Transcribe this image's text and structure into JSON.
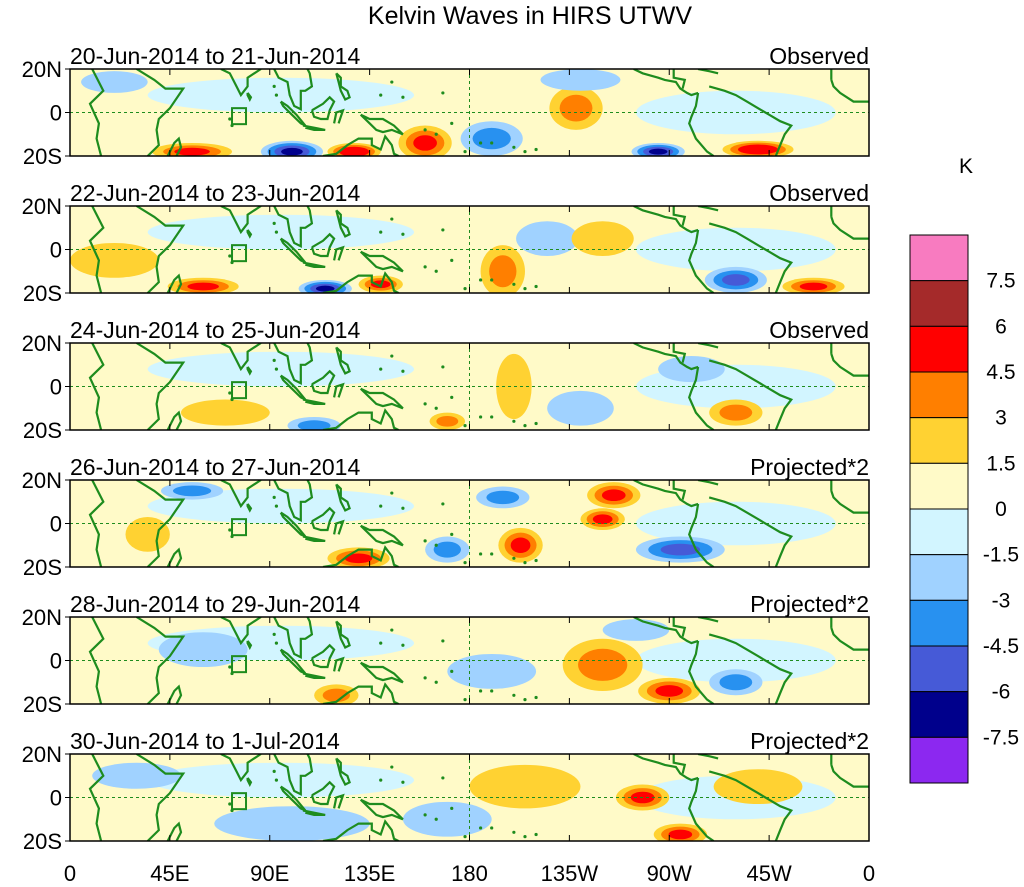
{
  "chart_data": {
    "type": "heatmap",
    "title": "Kelvin Waves in HIRS UTWV",
    "unit_label": "K",
    "x_ticks": [
      "0",
      "45E",
      "90E",
      "135E",
      "180",
      "135W",
      "90W",
      "45W",
      "0"
    ],
    "y_ticks": [
      "20N",
      "0",
      "20S"
    ],
    "x_range_deg_east": [
      0,
      360
    ],
    "y_range_deg": [
      -20,
      20
    ],
    "colorbar": {
      "tick_labels": [
        "7.5",
        "6",
        "4.5",
        "3",
        "1.5",
        "0",
        "-1.5",
        "-3",
        "-4.5",
        "-6",
        "-7.5"
      ],
      "colors": [
        "#f87bc0",
        "#a52a2a",
        "#ff0000",
        "#ff7f00",
        "#ffd232",
        "#fffac8",
        "#d2f5ff",
        "#a0d2ff",
        "#2891f0",
        "#465ad7",
        "#00008c",
        "#8c28f0"
      ]
    },
    "panels": [
      {
        "date_range": "20-Jun-2014 to 21-Jun-2014",
        "label": "Observed",
        "blobs": [
          {
            "lon": 20,
            "lat": 14,
            "value": -1.5,
            "rlon": 15,
            "rlat": 5
          },
          {
            "lon": 55,
            "lat": -18,
            "value": 4.5,
            "rlon": 18,
            "rlat": 4
          },
          {
            "lon": 100,
            "lat": -18,
            "value": -6,
            "rlon": 14,
            "rlat": 5
          },
          {
            "lon": 128,
            "lat": -18,
            "value": 6,
            "rlon": 12,
            "rlat": 4
          },
          {
            "lon": 160,
            "lat": -14,
            "value": 4.5,
            "rlon": 12,
            "rlat": 8
          },
          {
            "lon": 190,
            "lat": -12,
            "value": -3,
            "rlon": 14,
            "rlat": 8
          },
          {
            "lon": 228,
            "lat": 2,
            "value": 3,
            "rlon": 12,
            "rlat": 10
          },
          {
            "lon": 265,
            "lat": -18,
            "value": -6,
            "rlon": 12,
            "rlat": 4
          },
          {
            "lon": 310,
            "lat": -17,
            "value": 6,
            "rlon": 16,
            "rlat": 4
          },
          {
            "lon": 230,
            "lat": 15,
            "value": -1.5,
            "rlon": 18,
            "rlat": 5
          }
        ]
      },
      {
        "date_range": "22-Jun-2014 to 23-Jun-2014",
        "label": "Observed",
        "blobs": [
          {
            "lon": 60,
            "lat": -17,
            "value": 4.5,
            "rlon": 16,
            "rlat": 4
          },
          {
            "lon": 115,
            "lat": -18,
            "value": -6,
            "rlon": 12,
            "rlat": 4
          },
          {
            "lon": 140,
            "lat": -16,
            "value": 4.5,
            "rlon": 10,
            "rlat": 4
          },
          {
            "lon": 195,
            "lat": -10,
            "value": 3,
            "rlon": 10,
            "rlat": 12
          },
          {
            "lon": 215,
            "lat": 5,
            "value": -1.5,
            "rlon": 14,
            "rlat": 8
          },
          {
            "lon": 240,
            "lat": 5,
            "value": 1.5,
            "rlon": 14,
            "rlat": 8
          },
          {
            "lon": 300,
            "lat": -14,
            "value": -4.5,
            "rlon": 14,
            "rlat": 6
          },
          {
            "lon": 335,
            "lat": -17,
            "value": 4.5,
            "rlon": 14,
            "rlat": 4
          },
          {
            "lon": 20,
            "lat": -5,
            "value": 1.5,
            "rlon": 20,
            "rlat": 8
          }
        ]
      },
      {
        "date_range": "24-Jun-2014 to 25-Jun-2014",
        "label": "Observed",
        "blobs": [
          {
            "lon": 70,
            "lat": -12,
            "value": 1.5,
            "rlon": 20,
            "rlat": 6
          },
          {
            "lon": 110,
            "lat": -18,
            "value": -3,
            "rlon": 12,
            "rlat": 4
          },
          {
            "lon": 200,
            "lat": 0,
            "value": 1.5,
            "rlon": 8,
            "rlat": 15
          },
          {
            "lon": 230,
            "lat": -10,
            "value": -1.5,
            "rlon": 15,
            "rlat": 8
          },
          {
            "lon": 300,
            "lat": -12,
            "value": 3,
            "rlon": 12,
            "rlat": 6
          },
          {
            "lon": 280,
            "lat": 8,
            "value": -1.5,
            "rlon": 15,
            "rlat": 6
          },
          {
            "lon": 170,
            "lat": -16,
            "value": 3,
            "rlon": 8,
            "rlat": 4
          }
        ]
      },
      {
        "date_range": "26-Jun-2014 to 27-Jun-2014",
        "label": "Projected*2",
        "blobs": [
          {
            "lon": 55,
            "lat": 15,
            "value": -3,
            "rlon": 14,
            "rlat": 4
          },
          {
            "lon": 130,
            "lat": -16,
            "value": 4.5,
            "rlon": 14,
            "rlat": 5
          },
          {
            "lon": 170,
            "lat": -12,
            "value": -3,
            "rlon": 10,
            "rlat": 6
          },
          {
            "lon": 203,
            "lat": -10,
            "value": 4.5,
            "rlon": 10,
            "rlat": 8
          },
          {
            "lon": 245,
            "lat": 13,
            "value": 4.5,
            "rlon": 12,
            "rlat": 6
          },
          {
            "lon": 240,
            "lat": 2,
            "value": 4.5,
            "rlon": 10,
            "rlat": 5
          },
          {
            "lon": 275,
            "lat": -12,
            "value": -4.5,
            "rlon": 20,
            "rlat": 6
          },
          {
            "lon": 35,
            "lat": -5,
            "value": 1.5,
            "rlon": 10,
            "rlat": 8
          },
          {
            "lon": 195,
            "lat": 12,
            "value": -3,
            "rlon": 12,
            "rlat": 5
          }
        ]
      },
      {
        "date_range": "28-Jun-2014 to 29-Jun-2014",
        "label": "Projected*2",
        "blobs": [
          {
            "lon": 240,
            "lat": -2,
            "value": 3,
            "rlon": 18,
            "rlat": 12
          },
          {
            "lon": 270,
            "lat": -14,
            "value": 4.5,
            "rlon": 14,
            "rlat": 6
          },
          {
            "lon": 300,
            "lat": -10,
            "value": -3,
            "rlon": 12,
            "rlat": 6
          },
          {
            "lon": 120,
            "lat": -16,
            "value": 3,
            "rlon": 10,
            "rlat": 5
          },
          {
            "lon": 60,
            "lat": 5,
            "value": -1.5,
            "rlon": 20,
            "rlat": 8
          },
          {
            "lon": 190,
            "lat": -5,
            "value": -1.5,
            "rlon": 20,
            "rlat": 8
          },
          {
            "lon": 255,
            "lat": 14,
            "value": -1.5,
            "rlon": 15,
            "rlat": 5
          }
        ]
      },
      {
        "date_range": "30-Jun-2014 to 1-Jul-2014",
        "label": "Projected*2",
        "blobs": [
          {
            "lon": 258,
            "lat": 0,
            "value": 4.5,
            "rlon": 12,
            "rlat": 6
          },
          {
            "lon": 275,
            "lat": -17,
            "value": 4.5,
            "rlon": 12,
            "rlat": 5
          },
          {
            "lon": 100,
            "lat": -12,
            "value": -1.5,
            "rlon": 35,
            "rlat": 8
          },
          {
            "lon": 170,
            "lat": -10,
            "value": -1.5,
            "rlon": 20,
            "rlat": 8
          },
          {
            "lon": 205,
            "lat": 5,
            "value": 1.5,
            "rlon": 25,
            "rlat": 10
          },
          {
            "lon": 310,
            "lat": 5,
            "value": 1.5,
            "rlon": 20,
            "rlat": 8
          },
          {
            "lon": 30,
            "lat": 10,
            "value": -1.5,
            "rlon": 20,
            "rlat": 6
          }
        ]
      }
    ]
  }
}
